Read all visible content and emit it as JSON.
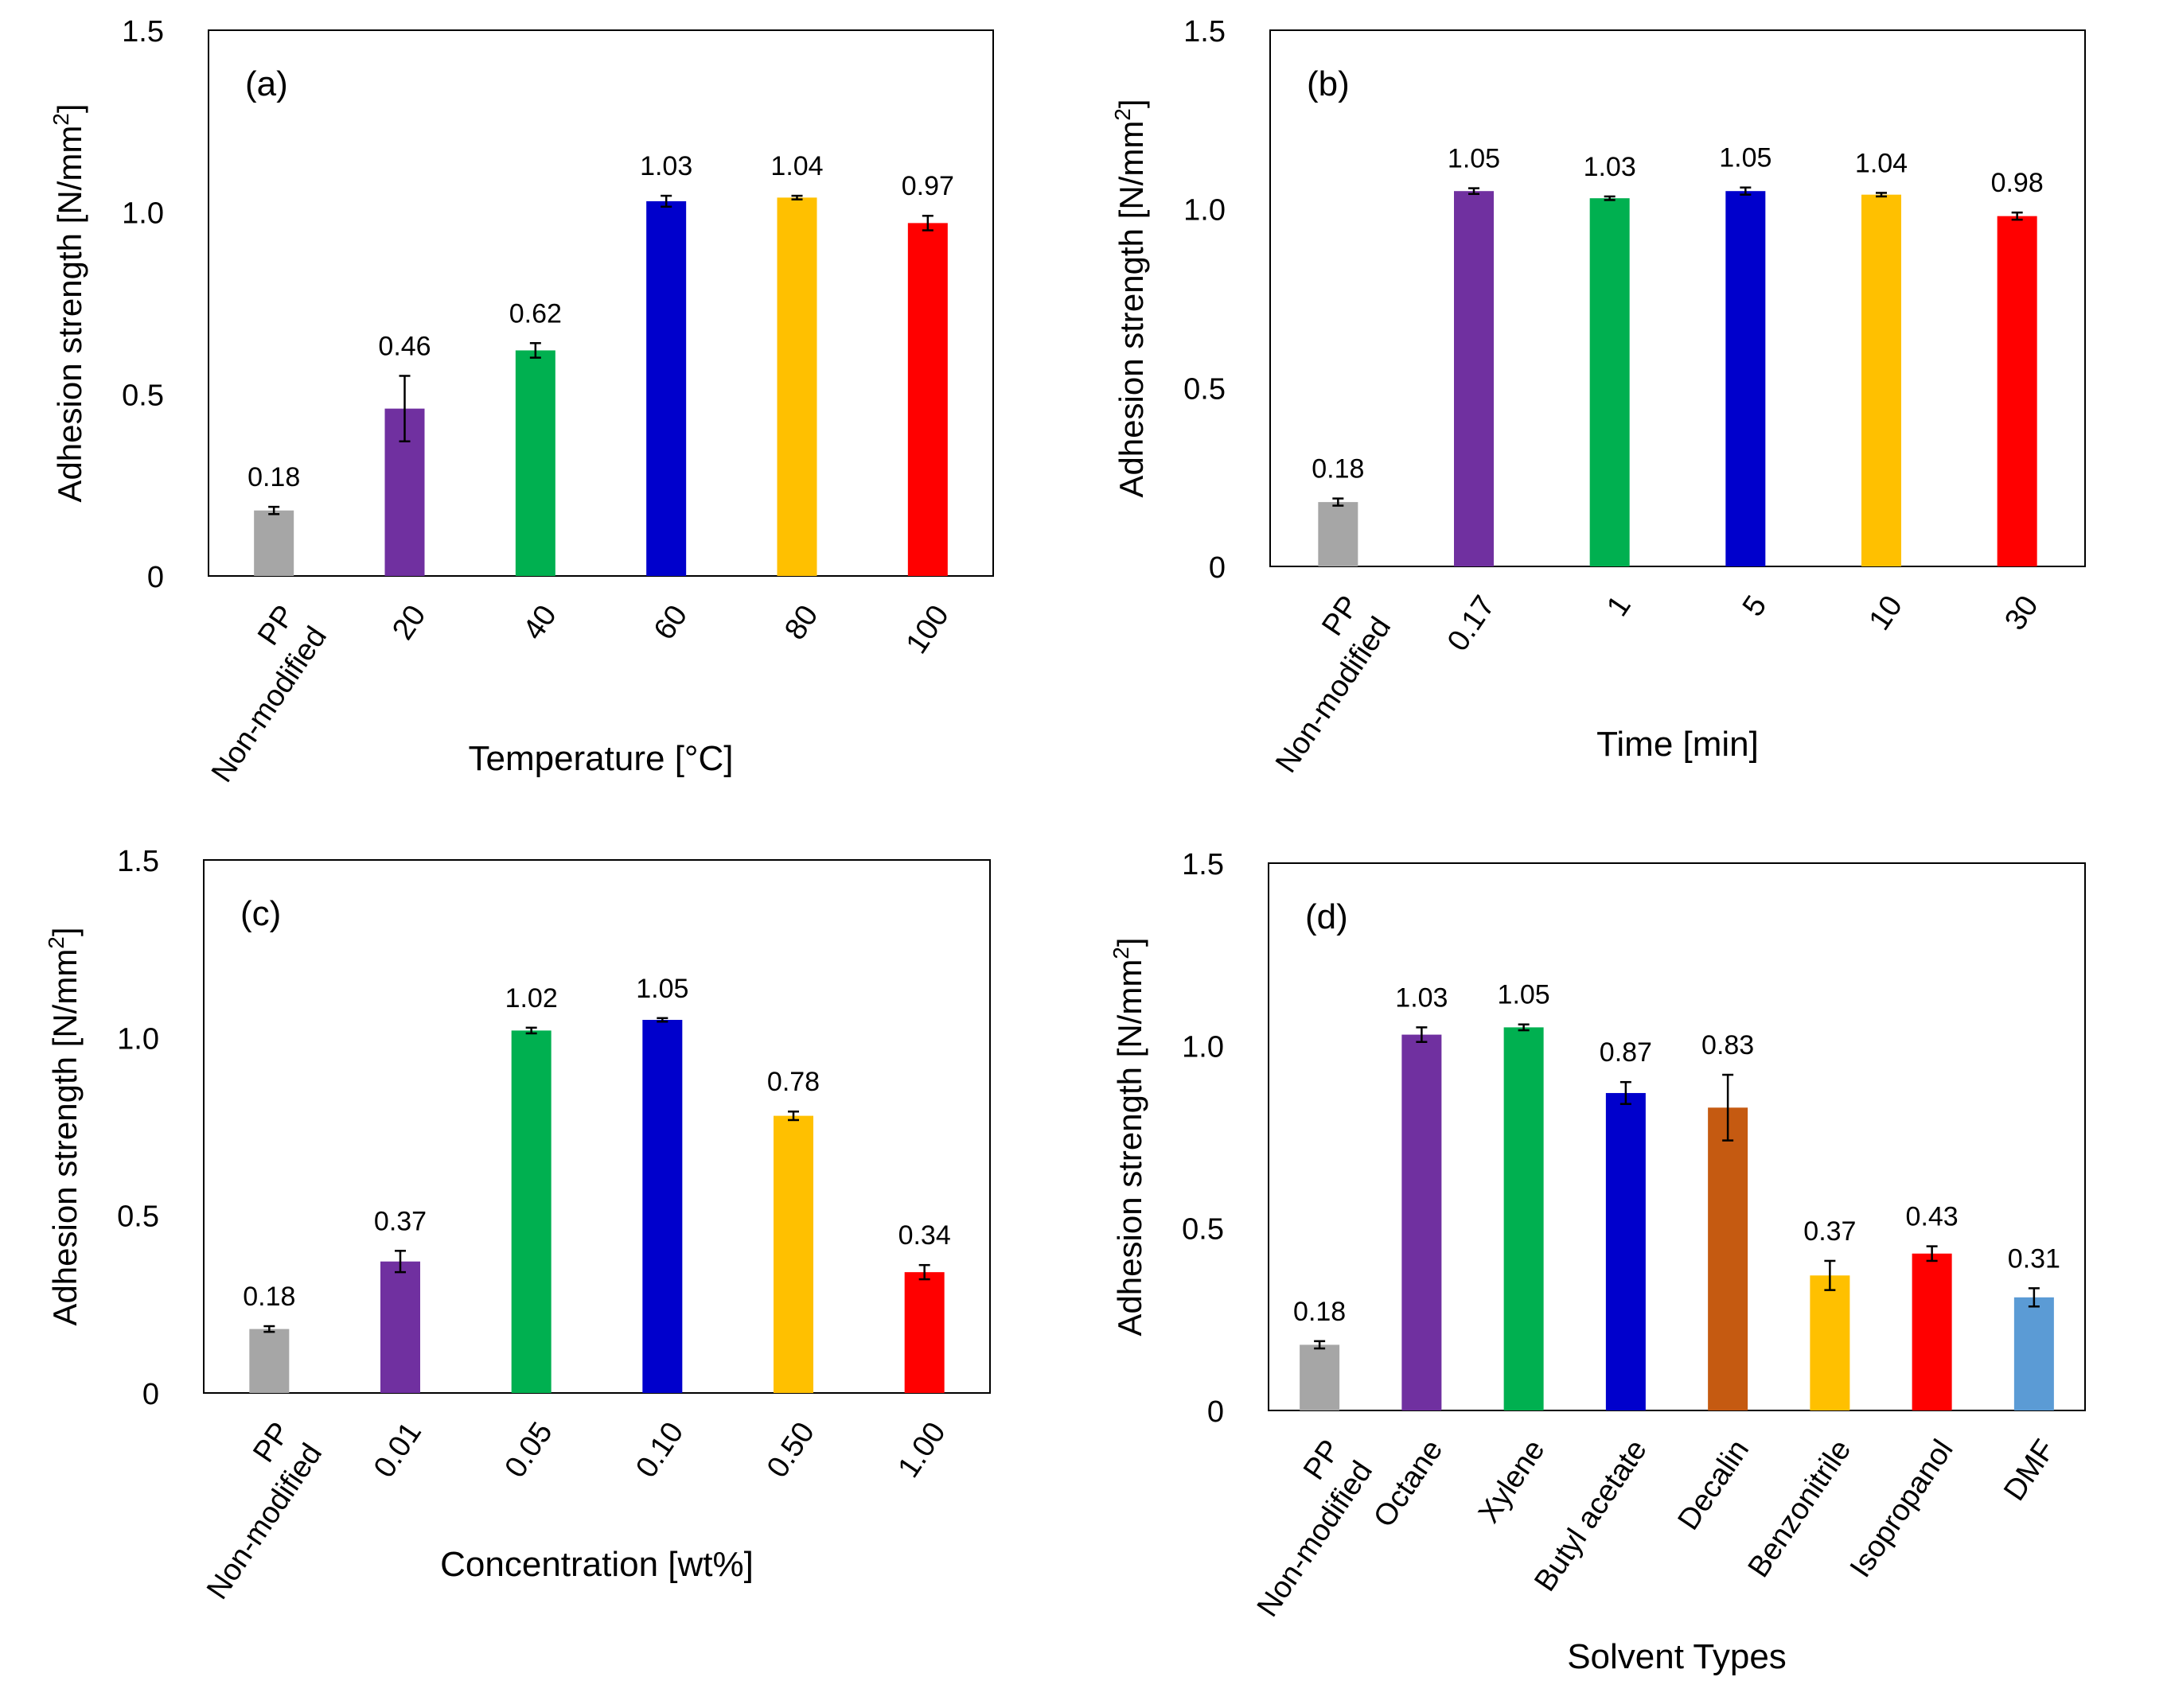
{
  "chart_data": [
    {
      "type": "bar",
      "panel_label": "(a)",
      "title": "",
      "ylabel_prefix": "Adhesion strength [N/mm",
      "ylabel_sup": "2",
      "ylabel_suffix": "]",
      "xlabel": "Temperature [°C]",
      "ylim": [
        0,
        1.5
      ],
      "yticks": [
        "0",
        "0.5",
        "1.0",
        "1.5"
      ],
      "categories": [
        [
          "Non-modified",
          "PP"
        ],
        [
          "20"
        ],
        [
          "40"
        ],
        [
          "60"
        ],
        [
          "80"
        ],
        [
          "100"
        ]
      ],
      "values": [
        0.18,
        0.46,
        0.62,
        1.03,
        1.04,
        0.97
      ],
      "value_labels": [
        "0.18",
        "0.46",
        "0.62",
        "1.03",
        "1.04",
        "0.97"
      ],
      "errors": [
        0.01,
        0.09,
        0.02,
        0.015,
        0.005,
        0.02
      ],
      "colors": [
        "#a6a6a6",
        "#7030a0",
        "#00b050",
        "#0000cc",
        "#ffc000",
        "#ff0000"
      ]
    },
    {
      "type": "bar",
      "panel_label": "(b)",
      "title": "",
      "ylabel_prefix": "Adhesion strength [N/mm",
      "ylabel_sup": "2",
      "ylabel_suffix": "]",
      "xlabel": "Time [min]",
      "ylim": [
        0,
        1.5
      ],
      "yticks": [
        "0",
        "0.5",
        "1.0",
        "1.5"
      ],
      "categories": [
        [
          "Non-modified",
          "PP"
        ],
        [
          "0.17"
        ],
        [
          "1"
        ],
        [
          "5"
        ],
        [
          "10"
        ],
        [
          "30"
        ]
      ],
      "values": [
        0.18,
        1.05,
        1.03,
        1.05,
        1.04,
        0.98
      ],
      "value_labels": [
        "0.18",
        "1.05",
        "1.03",
        "1.05",
        "1.04",
        "0.98"
      ],
      "errors": [
        0.01,
        0.008,
        0.005,
        0.01,
        0.005,
        0.01
      ],
      "colors": [
        "#a6a6a6",
        "#7030a0",
        "#00b050",
        "#0000cc",
        "#ffc000",
        "#ff0000"
      ]
    },
    {
      "type": "bar",
      "panel_label": "(c)",
      "title": "",
      "ylabel_prefix": "Adhesion strength [N/mm",
      "ylabel_sup": "2",
      "ylabel_suffix": "]",
      "xlabel": "Concentration [wt%]",
      "ylim": [
        0,
        1.5
      ],
      "yticks": [
        "0",
        "0.5",
        "1.0",
        "1.5"
      ],
      "categories": [
        [
          "Non-modified",
          "PP"
        ],
        [
          "0.01"
        ],
        [
          "0.05"
        ],
        [
          "0.10"
        ],
        [
          "0.50"
        ],
        [
          "1.00"
        ]
      ],
      "values": [
        0.18,
        0.37,
        1.02,
        1.05,
        0.78,
        0.34
      ],
      "value_labels": [
        "0.18",
        "0.37",
        "1.02",
        "1.05",
        "0.78",
        "0.34"
      ],
      "errors": [
        0.008,
        0.03,
        0.008,
        0.005,
        0.012,
        0.02
      ],
      "colors": [
        "#a6a6a6",
        "#7030a0",
        "#00b050",
        "#0000cc",
        "#ffc000",
        "#ff0000"
      ]
    },
    {
      "type": "bar",
      "panel_label": "(d)",
      "title": "",
      "ylabel_prefix": "Adhesion strength [N/mm",
      "ylabel_sup": "2",
      "ylabel_suffix": "]",
      "xlabel": "Solvent Types",
      "ylim": [
        0,
        1.5
      ],
      "yticks": [
        "0",
        "0.5",
        "1.0",
        "1.5"
      ],
      "categories": [
        [
          "Non-modified",
          "PP"
        ],
        [
          "Octane"
        ],
        [
          "Xylene"
        ],
        [
          "Butyl acetate"
        ],
        [
          "Decalin"
        ],
        [
          "Benzonitrile"
        ],
        [
          "Isopropanol"
        ],
        [
          "DMF"
        ]
      ],
      "values": [
        0.18,
        1.03,
        1.05,
        0.87,
        0.83,
        0.37,
        0.43,
        0.31
      ],
      "value_labels": [
        "0.18",
        "1.03",
        "1.05",
        "0.87",
        "0.83",
        "0.37",
        "0.43",
        "0.31"
      ],
      "errors": [
        0.01,
        0.02,
        0.008,
        0.03,
        0.09,
        0.04,
        0.02,
        0.025
      ],
      "colors": [
        "#a6a6a6",
        "#7030a0",
        "#00b050",
        "#0000cc",
        "#c55a11",
        "#ffc000",
        "#ff0000",
        "#5b9bd5"
      ]
    }
  ]
}
